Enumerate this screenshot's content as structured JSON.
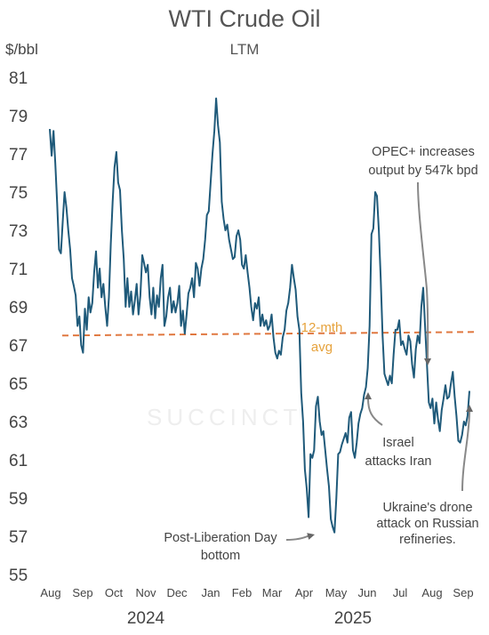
{
  "chart_data": {
    "type": "line",
    "title": "WTI Crude Oil",
    "subtitle": "LTM",
    "ylabel": "$/bbl",
    "ylim": [
      55,
      81
    ],
    "yticks": [
      81,
      79,
      77,
      75,
      73,
      71,
      69,
      67,
      65,
      63,
      61,
      59,
      57,
      55
    ],
    "months": [
      "Aug",
      "Sep",
      "Oct",
      "Nov",
      "Dec",
      "Jan",
      "Feb",
      "Mar",
      "Apr",
      "May",
      "Jun",
      "Jul",
      "Aug",
      "Sep"
    ],
    "years": [
      "2024",
      "2025"
    ],
    "grid": false,
    "line_color": "#1f5a7a",
    "avg_color": "#e07840",
    "series": [
      {
        "values": [
          78.3,
          76.9,
          78.2,
          76.5,
          74.4,
          72.0,
          71.8,
          73.5,
          75.0,
          74.2,
          73.0,
          72.0,
          70.5,
          70.1,
          69.6,
          68.0,
          68.5,
          67.0,
          66.6,
          68.9,
          67.8,
          69.5,
          68.7,
          69.2,
          70.8,
          71.9,
          70.0,
          71.0,
          69.5,
          70.2,
          69.0,
          68.0,
          69.5,
          72.3,
          74.5,
          76.3,
          77.1,
          75.5,
          75.1,
          73.0,
          71.5,
          69.0,
          70.5,
          69.0,
          69.8,
          68.6,
          69.3,
          70.2,
          68.6,
          69.6,
          71.7,
          71.3,
          70.8,
          71.2,
          69.5,
          68.6,
          70.0,
          68.4,
          69.6,
          69.0,
          70.5,
          71.2,
          68.0,
          68.5,
          69.5,
          70.0,
          68.7,
          69.3,
          68.7,
          69.2,
          70.1,
          68.0,
          68.8,
          67.6,
          68.6,
          69.7,
          70.0,
          70.5,
          69.5,
          71.3,
          71.0,
          70.1,
          71.0,
          71.5,
          72.5,
          73.8,
          74.0,
          75.5,
          77.0,
          78.2,
          79.9,
          78.5,
          77.6,
          74.5,
          73.6,
          73.0,
          73.3,
          72.5,
          72.0,
          71.5,
          71.6,
          72.7,
          73.0,
          72.5,
          71.2,
          71.0,
          71.7,
          70.8,
          70.0,
          69.0,
          68.3,
          69.2,
          68.9,
          69.5,
          68.0,
          68.6,
          68.0,
          68.3,
          67.8,
          68.0,
          68.6,
          67.4,
          66.6,
          66.3,
          66.7,
          66.5,
          67.4,
          67.8,
          68.8,
          69.2,
          70.0,
          71.2,
          70.5,
          69.9,
          68.5,
          67.8,
          64.5,
          63.0,
          60.5,
          59.5,
          58.0,
          61.3,
          61.1,
          61.5,
          63.8,
          64.3,
          63.0,
          62.3,
          62.5,
          61.5,
          60.5,
          59.6,
          57.9,
          57.5,
          57.2,
          59.0,
          61.3,
          61.4,
          61.8,
          62.1,
          62.4,
          61.9,
          63.2,
          63.5,
          61.5,
          61.1,
          61.9,
          62.9,
          63.4,
          63.7,
          64.4,
          64.8,
          65.8,
          68.0,
          72.8,
          73.1,
          75.0,
          74.8,
          73.0,
          70.5,
          67.5,
          65.5,
          65.2,
          64.9,
          65.4,
          65.0,
          66.5,
          67.8,
          67.8,
          68.3,
          67.0,
          67.2,
          66.8,
          66.5,
          67.5,
          67.2,
          66.0,
          65.3,
          66.8,
          67.5,
          67.1,
          69.0,
          70.0,
          68.0,
          66.0,
          64.0,
          63.7,
          64.2,
          62.9,
          64.0,
          63.1,
          62.5,
          63.6,
          64.2,
          64.9,
          64.2,
          64.3,
          65.0,
          65.6,
          64.3,
          63.3,
          62.0,
          61.9,
          62.3,
          63.0,
          62.8,
          63.3,
          64.6
        ]
      }
    ],
    "average": {
      "value": 67.5,
      "label_line1": "12-mth",
      "label_line2": "avg"
    },
    "annotations": [
      {
        "lines": [
          "OPEC+ increases",
          "output by 547k bpd"
        ]
      },
      {
        "lines": [
          "Israel",
          "attacks Iran"
        ]
      },
      {
        "lines": [
          "Ukraine's drone",
          "attack on Russian",
          "refineries."
        ]
      },
      {
        "lines": [
          "Post-Liberation Day",
          "bottom"
        ]
      }
    ],
    "watermark": "SUCCINCT"
  }
}
